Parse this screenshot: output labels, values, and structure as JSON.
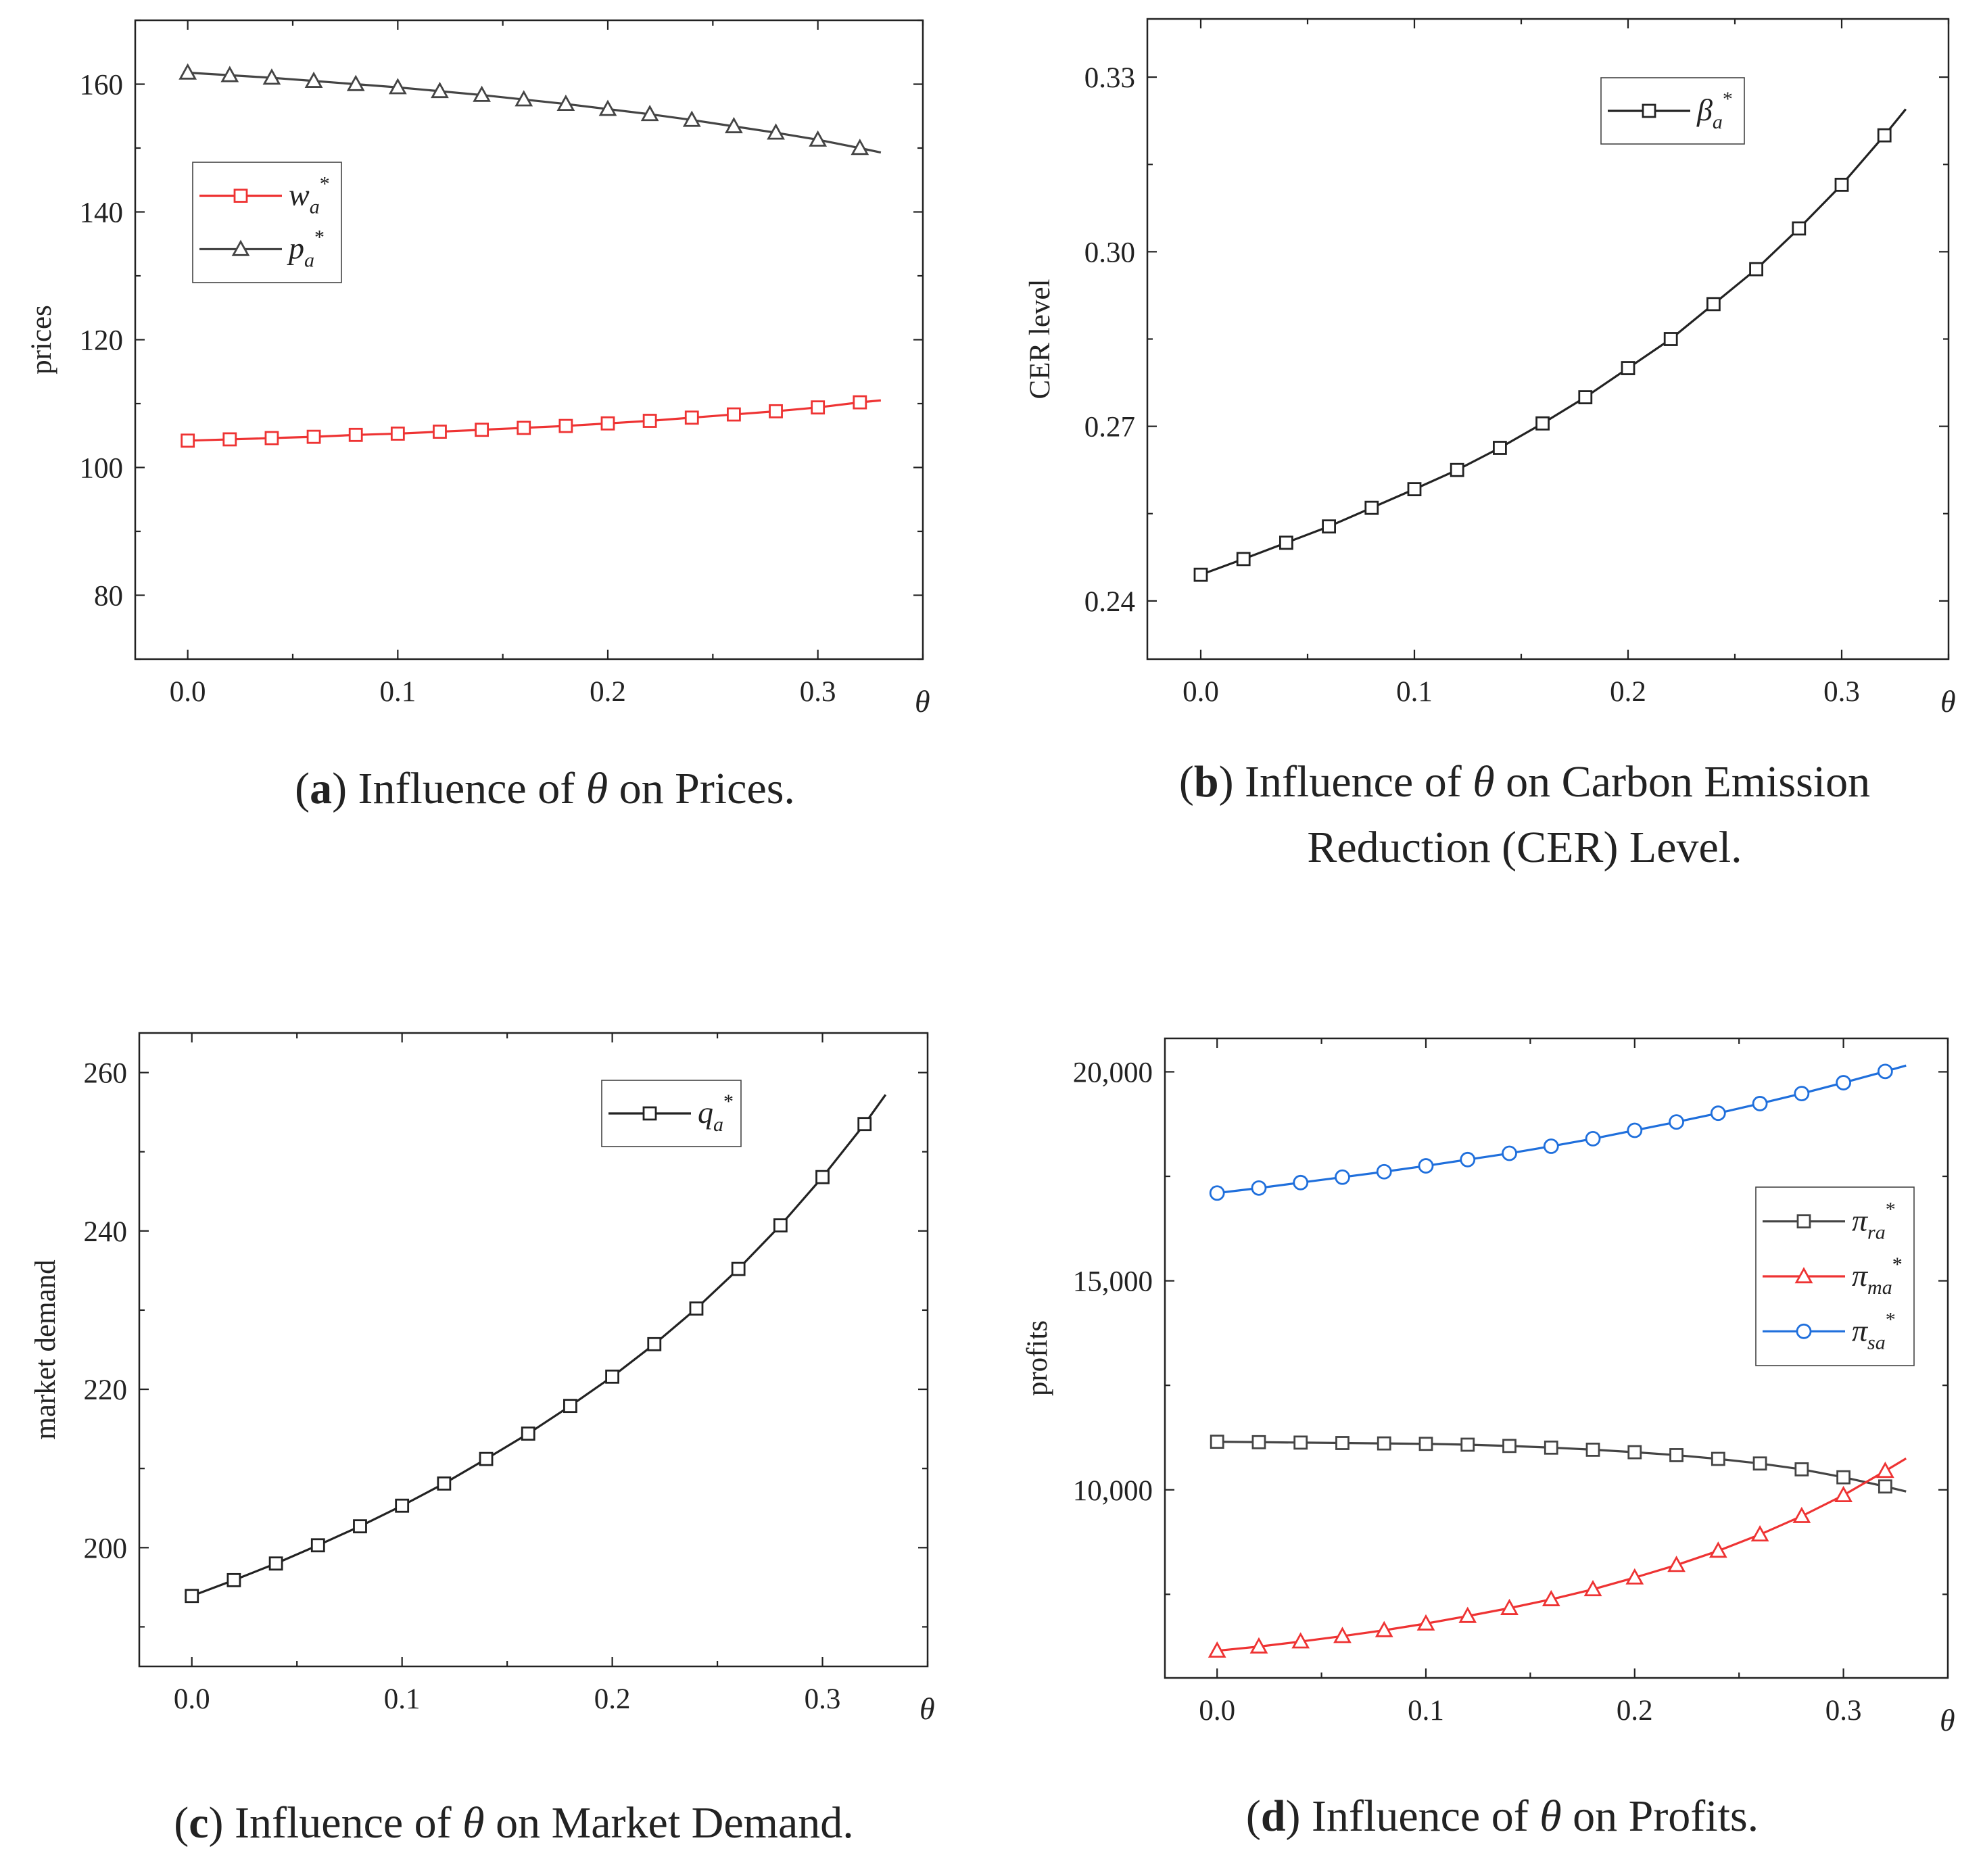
{
  "chart_data": [
    {
      "id": "a",
      "type": "line",
      "title": "",
      "caption": {
        "prefix": "(",
        "letter": "a",
        "pre": ") Influence of",
        "symbol": "θ",
        "post": "on Prices."
      },
      "xlabel": "θ",
      "ylabel": "prices",
      "xlim": [
        -0.025,
        0.35
      ],
      "ylim": [
        70,
        170
      ],
      "xticks": [
        0.0,
        0.1,
        0.2,
        0.3
      ],
      "xtick_labels": [
        "0.0",
        "0.1",
        "0.2",
        "0.3"
      ],
      "yticks": [
        80,
        100,
        120,
        140,
        160
      ],
      "ytick_labels": [
        "80",
        "100",
        "120",
        "140",
        "160"
      ],
      "legend": "upper-left",
      "series": [
        {
          "name": "w",
          "sub": "a",
          "sup": "*",
          "color": "#ee3333",
          "marker": "square",
          "x": [
            0,
            0.02,
            0.04,
            0.06,
            0.08,
            0.1,
            0.12,
            0.14,
            0.16,
            0.18,
            0.2,
            0.22,
            0.24,
            0.26,
            0.28,
            0.3,
            0.32,
            0.33
          ],
          "y": [
            104.2,
            104.4,
            104.6,
            104.8,
            105.1,
            105.3,
            105.6,
            105.9,
            106.2,
            106.5,
            106.9,
            107.3,
            107.8,
            108.3,
            108.8,
            109.4,
            110.2,
            110.5
          ],
          "marked": 17
        },
        {
          "name": "p",
          "sub": "a",
          "sup": "*",
          "color": "#444444",
          "marker": "triangle",
          "x": [
            0,
            0.02,
            0.04,
            0.06,
            0.08,
            0.1,
            0.12,
            0.14,
            0.16,
            0.18,
            0.2,
            0.22,
            0.24,
            0.26,
            0.28,
            0.3,
            0.32,
            0.33
          ],
          "y": [
            161.8,
            161.4,
            161.0,
            160.5,
            160.0,
            159.5,
            158.9,
            158.3,
            157.6,
            156.9,
            156.1,
            155.3,
            154.4,
            153.4,
            152.4,
            151.3,
            150.0,
            149.3
          ],
          "marked": 17
        }
      ]
    },
    {
      "id": "b",
      "type": "line",
      "title": "",
      "caption": {
        "prefix": "(",
        "letter": "b",
        "pre": ") Influence of",
        "symbol": "θ",
        "post": "on Carbon Emission",
        "line2": "Reduction (CER) Level."
      },
      "xlabel": "θ",
      "ylabel": "CER level",
      "xlim": [
        -0.025,
        0.35
      ],
      "ylim": [
        0.23,
        0.34
      ],
      "xticks": [
        0.0,
        0.1,
        0.2,
        0.3
      ],
      "xtick_labels": [
        "0.0",
        "0.1",
        "0.2",
        "0.3"
      ],
      "yticks": [
        0.24,
        0.27,
        0.3,
        0.33
      ],
      "ytick_labels": [
        "0.24",
        "0.27",
        "0.30",
        "0.33"
      ],
      "legend": "top-right",
      "series": [
        {
          "name": "β",
          "sub": "a",
          "sup": "*",
          "color": "#222222",
          "marker": "square",
          "x": [
            0,
            0.02,
            0.04,
            0.06,
            0.08,
            0.1,
            0.12,
            0.14,
            0.16,
            0.18,
            0.2,
            0.22,
            0.24,
            0.26,
            0.28,
            0.3,
            0.32,
            0.33
          ],
          "y": [
            0.2445,
            0.2472,
            0.25,
            0.2528,
            0.256,
            0.2592,
            0.2625,
            0.2663,
            0.2705,
            0.275,
            0.28,
            0.285,
            0.291,
            0.297,
            0.304,
            0.3115,
            0.32,
            0.3245
          ],
          "marked": 17
        }
      ]
    },
    {
      "id": "c",
      "type": "line",
      "title": "",
      "caption": {
        "prefix": "(",
        "letter": "c",
        "pre": ") Influence of",
        "symbol": "θ",
        "post": "on Market Demand."
      },
      "xlabel": "θ",
      "ylabel": "market demand",
      "xlim": [
        -0.025,
        0.35
      ],
      "ylim": [
        185,
        265
      ],
      "xticks": [
        0.0,
        0.1,
        0.2,
        0.3
      ],
      "xtick_labels": [
        "0.0",
        "0.1",
        "0.2",
        "0.3"
      ],
      "yticks": [
        200,
        220,
        240,
        260
      ],
      "ytick_labels": [
        "200",
        "220",
        "240",
        "260"
      ],
      "legend": "top-right",
      "series": [
        {
          "name": "q",
          "sub": "a",
          "sup": "*",
          "color": "#222222",
          "marker": "square",
          "x": [
            0,
            0.02,
            0.04,
            0.06,
            0.08,
            0.1,
            0.12,
            0.14,
            0.16,
            0.18,
            0.2,
            0.22,
            0.24,
            0.26,
            0.28,
            0.3,
            0.32,
            0.33
          ],
          "y": [
            193.9,
            195.9,
            198.0,
            200.3,
            202.7,
            205.3,
            208.1,
            211.2,
            214.4,
            217.9,
            221.6,
            225.7,
            230.2,
            235.2,
            240.7,
            246.8,
            253.5,
            257.2
          ],
          "marked": 17
        }
      ]
    },
    {
      "id": "d",
      "type": "line",
      "title": "",
      "caption": {
        "prefix": "(",
        "letter": "d",
        "pre": ") Influence of",
        "symbol": "θ",
        "post": "on Profits."
      },
      "xlabel": "θ",
      "ylabel": "profits",
      "xlim": [
        -0.025,
        0.35
      ],
      "ylim": [
        5500,
        20800
      ],
      "xticks": [
        0.0,
        0.1,
        0.2,
        0.3
      ],
      "xtick_labels": [
        "0.0",
        "0.1",
        "0.2",
        "0.3"
      ],
      "yticks": [
        10000,
        15000,
        20000
      ],
      "ytick_labels": [
        "10,000",
        "15,000",
        "20,000"
      ],
      "legend": "right",
      "series": [
        {
          "name": "π",
          "sub": "ra",
          "sup": "*",
          "color": "#444444",
          "marker": "square",
          "x": [
            0,
            0.02,
            0.04,
            0.06,
            0.08,
            0.1,
            0.12,
            0.14,
            0.16,
            0.18,
            0.2,
            0.22,
            0.24,
            0.26,
            0.28,
            0.3,
            0.32,
            0.33
          ],
          "y": [
            11150,
            11140,
            11130,
            11120,
            11110,
            11100,
            11080,
            11050,
            11010,
            10960,
            10900,
            10830,
            10740,
            10630,
            10490,
            10300,
            10080,
            9960
          ],
          "marked": 17
        },
        {
          "name": "π",
          "sub": "ma",
          "sup": "*",
          "color": "#ee3333",
          "marker": "triangle",
          "x": [
            0,
            0.02,
            0.04,
            0.06,
            0.08,
            0.1,
            0.12,
            0.14,
            0.16,
            0.18,
            0.2,
            0.22,
            0.24,
            0.26,
            0.28,
            0.3,
            0.32,
            0.33
          ],
          "y": [
            6150,
            6250,
            6370,
            6500,
            6640,
            6800,
            6980,
            7170,
            7380,
            7620,
            7900,
            8200,
            8540,
            8930,
            9370,
            9870,
            10450,
            10750
          ],
          "marked": 17
        },
        {
          "name": "π",
          "sub": "sa",
          "sup": "*",
          "color": "#1f6fdc",
          "marker": "circle",
          "x": [
            0,
            0.02,
            0.04,
            0.06,
            0.08,
            0.1,
            0.12,
            0.14,
            0.16,
            0.18,
            0.2,
            0.22,
            0.24,
            0.26,
            0.28,
            0.3,
            0.32,
            0.33
          ],
          "y": [
            17100,
            17220,
            17350,
            17480,
            17610,
            17750,
            17900,
            18050,
            18220,
            18400,
            18600,
            18800,
            19010,
            19240,
            19480,
            19740,
            20010,
            20150
          ],
          "marked": 17
        }
      ]
    }
  ]
}
